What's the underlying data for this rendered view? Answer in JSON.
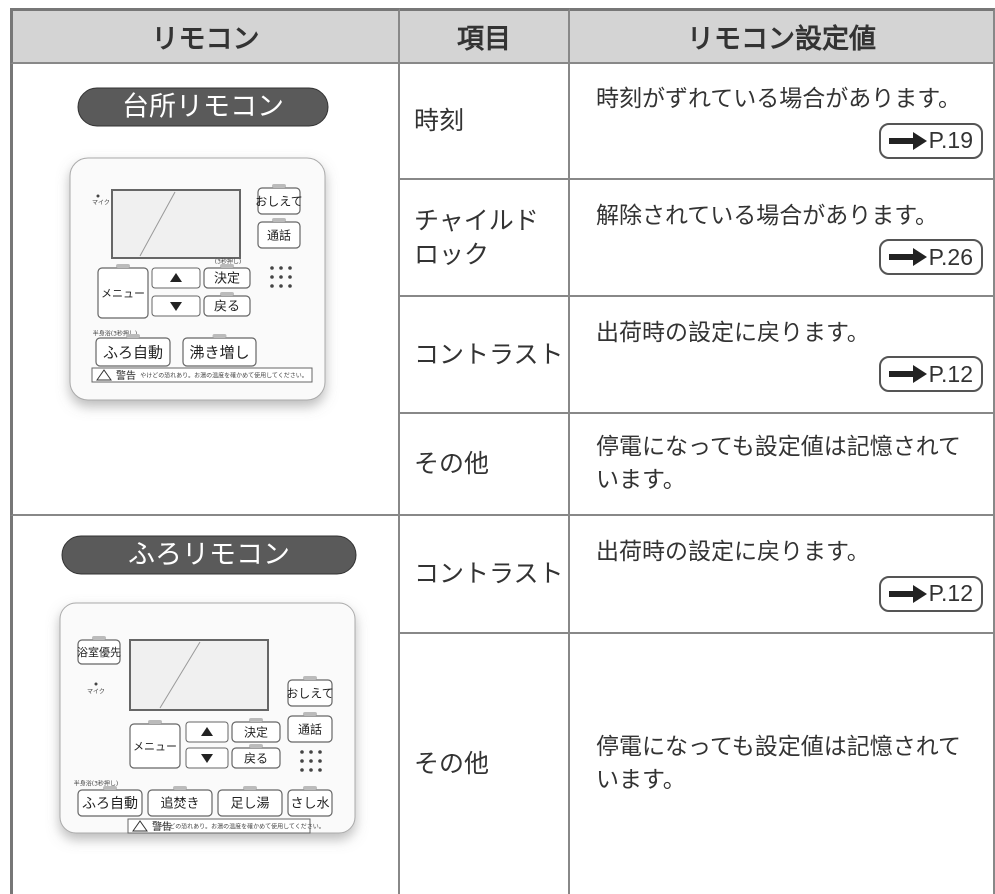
{
  "table": {
    "header": [
      "リモコン",
      "項目",
      "リモコン設定値"
    ],
    "groups": [
      {
        "remote": {
          "label": "台所リモコン",
          "mic": "マイク",
          "lock_note": "(3秒押し)",
          "half_bath": "半身浴(3秒押し)",
          "buttons": [
            "おしえて",
            "通話",
            "メニュー",
            "決定",
            "戻る",
            "ふろ自動",
            "沸き増し"
          ],
          "warning": "警告",
          "warning_text": "やけどの恐れあり。お湯の温度を確かめて使用してください。"
        },
        "rows": [
          {
            "item": "時刻",
            "value": "時刻がずれている場合があります。",
            "ref": "P.19"
          },
          {
            "item": "チャイルド\nロック",
            "value": "解除されている場合があります。",
            "ref": "P.26"
          },
          {
            "item": "コントラスト",
            "value": "出荷時の設定に戻ります。",
            "ref": "P.12"
          },
          {
            "item": "その他",
            "value": "停電になっても設定値は記憶されています。"
          }
        ]
      },
      {
        "remote": {
          "label": "ふろリモコン",
          "mic": "マイク",
          "half_bath": "半身浴(3秒押し)",
          "buttons": [
            "浴室優先",
            "おしえて",
            "通話",
            "メニュー",
            "決定",
            "戻る",
            "ふろ自動",
            "追焚き",
            "足し湯",
            "さし水"
          ],
          "warning": "警告",
          "warning_text": "やけどの恐れあり。お湯の温度を確かめて使用してください。"
        },
        "rows": [
          {
            "item": "コントラスト",
            "value": "出荷時の設定に戻ります。",
            "ref": "P.12"
          },
          {
            "item": "その他",
            "value": "停電になっても設定値は記憶されています。"
          }
        ]
      }
    ]
  }
}
